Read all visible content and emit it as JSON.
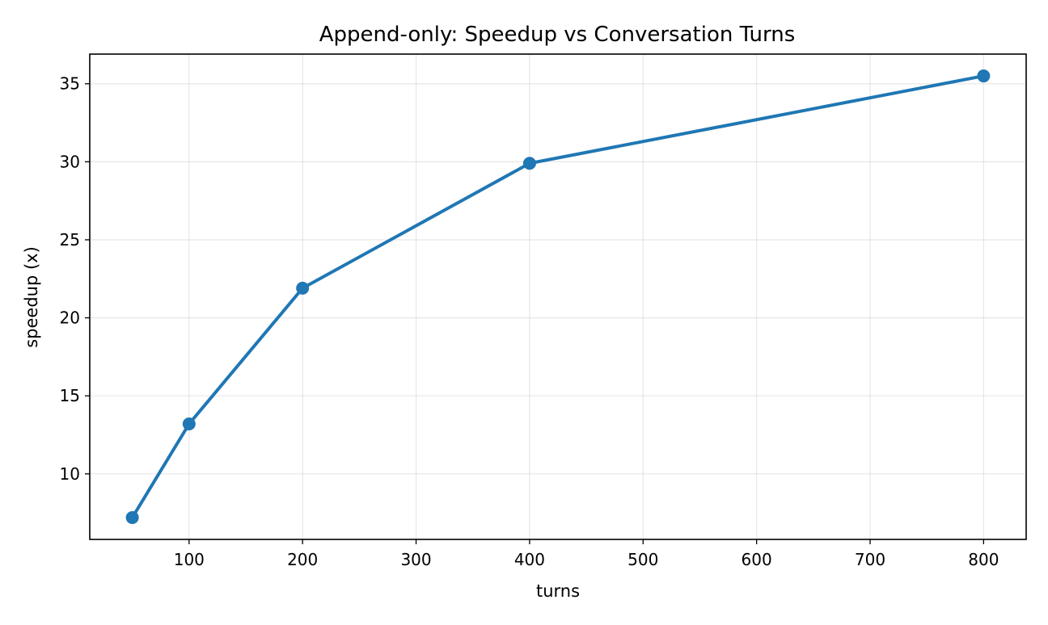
{
  "chart_data": {
    "type": "line",
    "title": "Append-only: Speedup vs Conversation Turns",
    "xlabel": "turns",
    "ylabel": "speedup (x)",
    "xlim": [
      12.5,
      837.5
    ],
    "ylim": [
      5.8,
      36.9
    ],
    "xticks": [
      100,
      200,
      300,
      400,
      500,
      600,
      700,
      800
    ],
    "yticks": [
      10,
      15,
      20,
      25,
      30,
      35
    ],
    "grid": true,
    "series": [
      {
        "color": "#1f77b4",
        "marker": "circle",
        "x": [
          50,
          100,
          200,
          400,
          800
        ],
        "y": [
          7.2,
          13.2,
          21.9,
          29.9,
          35.5
        ]
      }
    ]
  }
}
